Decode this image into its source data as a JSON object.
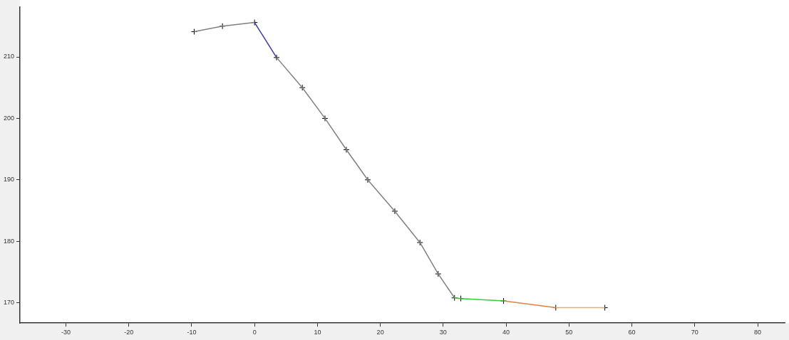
{
  "chart_data": {
    "type": "line",
    "xlim": [
      -37.3,
      84.3
    ],
    "ylim": [
      166.7,
      218.1
    ],
    "xticks": [
      -30,
      -20,
      -10,
      0,
      10,
      20,
      30,
      40,
      50,
      60,
      70,
      80
    ],
    "yticks": [
      170,
      180,
      190,
      200,
      210
    ],
    "grid": false,
    "legend": false,
    "marker": "none",
    "line_style": "solid",
    "series": [
      {
        "color": "#808080",
        "x": [
          -9.6,
          -5.1,
          0
        ],
        "values": [
          214.1,
          215,
          215.6
        ]
      },
      {
        "color": "#3c3c9c",
        "x": [
          0,
          3.5
        ],
        "values": [
          215.6,
          209.9
        ]
      },
      {
        "color": "#808080",
        "x": [
          3.5,
          7.6,
          11.2,
          14.6,
          18,
          22.3,
          26.3,
          29.2,
          31.8
        ],
        "values": [
          209.9,
          205,
          200,
          194.9,
          190,
          184.9,
          179.8,
          174.7,
          170.8
        ]
      },
      {
        "color": "#30d030",
        "x": [
          31.8,
          32.8,
          39.6
        ],
        "values": [
          170.8,
          170.7,
          170.3
        ]
      },
      {
        "color": "#e08040",
        "x": [
          39.6,
          47.9
        ],
        "values": [
          170.3,
          169.2
        ]
      },
      {
        "color": "#d8b080",
        "x": [
          47.9,
          55.7
        ],
        "values": [
          169.2,
          169.2
        ]
      },
      {
        "type": "scatter",
        "marker": "cross",
        "color": "#000000",
        "x": [
          -9.6,
          -5.1,
          0,
          3.5,
          7.6,
          11.2,
          14.6,
          18,
          22.3,
          26.3,
          29.2,
          31.8,
          32.8,
          39.6,
          47.9,
          55.7
        ],
        "values": [
          214.1,
          215,
          215.6,
          209.9,
          205,
          200,
          194.9,
          190,
          184.9,
          179.8,
          174.7,
          170.8,
          170.7,
          170.3,
          169.2,
          169.2
        ]
      }
    ]
  }
}
